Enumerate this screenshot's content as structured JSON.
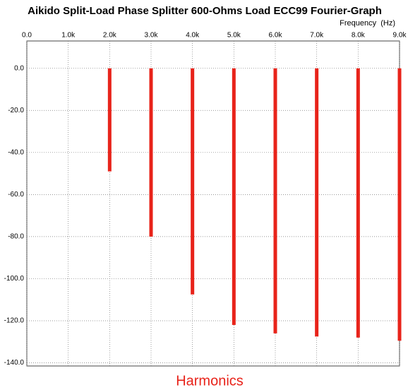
{
  "chart_data": {
    "type": "bar",
    "title": "Aikido Split-Load Phase Splitter 600-Ohms Load ECC99 Fourier-Graph",
    "x_label": "Frequency  (Hz)",
    "annotation": "Harmonics",
    "x": [
      2000,
      3000,
      4000,
      5000,
      6000,
      7000,
      8000,
      9000
    ],
    "values": [
      -49,
      -80,
      -107.5,
      -122,
      -126,
      -127.5,
      -128,
      -129.5
    ],
    "color": "#e8231a",
    "xlim": [
      0,
      9000
    ],
    "xticks": [
      {
        "value": 0,
        "label": "0.0"
      },
      {
        "value": 1000,
        "label": "1.0k"
      },
      {
        "value": 2000,
        "label": "2.0k"
      },
      {
        "value": 3000,
        "label": "3.0k"
      },
      {
        "value": 4000,
        "label": "4.0k"
      },
      {
        "value": 5000,
        "label": "5.0k"
      },
      {
        "value": 6000,
        "label": "6.0k"
      },
      {
        "value": 7000,
        "label": "7.0k"
      },
      {
        "value": 8000,
        "label": "8.0k"
      },
      {
        "value": 9000,
        "label": "9.0k"
      }
    ],
    "ylim": [
      -141.5,
      13
    ],
    "yticks": [
      {
        "value": 0,
        "label": "0.0"
      },
      {
        "value": -20,
        "label": "-20.0"
      },
      {
        "value": -40,
        "label": "-40.0"
      },
      {
        "value": -60,
        "label": "-60.0"
      },
      {
        "value": -80,
        "label": "-80.0"
      },
      {
        "value": -100,
        "label": "-100.0"
      },
      {
        "value": -120,
        "label": "-120.0"
      },
      {
        "value": -140,
        "label": "-140.0"
      }
    ],
    "grid": true
  }
}
